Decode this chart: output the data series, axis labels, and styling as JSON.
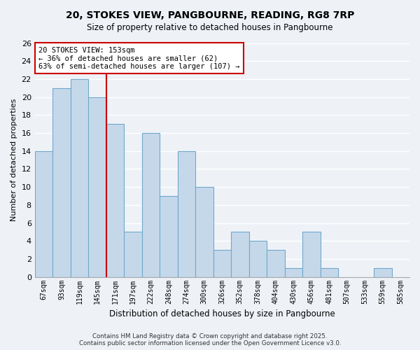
{
  "title": "20, STOKES VIEW, PANGBOURNE, READING, RG8 7RP",
  "subtitle": "Size of property relative to detached houses in Pangbourne",
  "xlabel": "Distribution of detached houses by size in Pangbourne",
  "ylabel": "Number of detached properties",
  "bin_labels": [
    "67sqm",
    "93sqm",
    "119sqm",
    "145sqm",
    "171sqm",
    "197sqm",
    "222sqm",
    "248sqm",
    "274sqm",
    "300sqm",
    "326sqm",
    "352sqm",
    "378sqm",
    "404sqm",
    "430sqm",
    "456sqm",
    "481sqm",
    "507sqm",
    "533sqm",
    "559sqm",
    "585sqm"
  ],
  "bin_values": [
    14,
    21,
    22,
    20,
    17,
    5,
    16,
    9,
    14,
    10,
    3,
    5,
    4,
    3,
    1,
    5,
    1,
    0,
    0,
    1,
    0
  ],
  "bar_color": "#c5d8ea",
  "bar_edge_color": "#6fa8cc",
  "property_line_color": "#cc0000",
  "annotation_title": "20 STOKES VIEW: 153sqm",
  "annotation_line1": "← 36% of detached houses are smaller (62)",
  "annotation_line2": "63% of semi-detached houses are larger (107) →",
  "annotation_box_facecolor": "#ffffff",
  "annotation_box_edgecolor": "#cc0000",
  "ylim": [
    0,
    26
  ],
  "yticks": [
    0,
    2,
    4,
    6,
    8,
    10,
    12,
    14,
    16,
    18,
    20,
    22,
    24,
    26
  ],
  "background_color": "#eef2f7",
  "plot_bg_color": "#eef2f7",
  "grid_color": "#ffffff",
  "footer1": "Contains HM Land Registry data © Crown copyright and database right 2025.",
  "footer2": "Contains public sector information licensed under the Open Government Licence v3.0."
}
